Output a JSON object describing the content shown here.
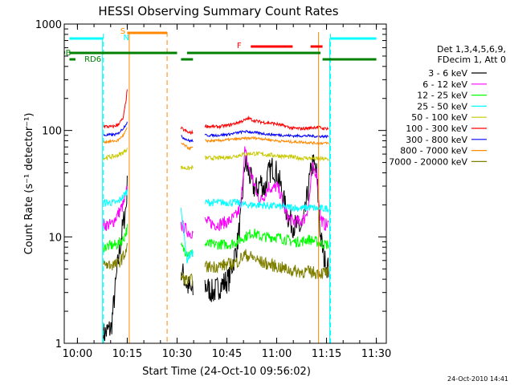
{
  "chart_data": {
    "type": "line",
    "title": "HESSI Observing Summary Count Rates",
    "xlabel": "Start Time (24-Oct-10 09:56:02)",
    "ylabel": "Count Rate (s⁻¹ detector⁻¹)",
    "yscale": "log",
    "ylim": [
      1,
      1000
    ],
    "xlim": [
      "09:56:02",
      "11:33"
    ],
    "x_ticks": [
      "10:00",
      "10:15",
      "10:30",
      "10:45",
      "11:00",
      "11:15",
      "11:30"
    ],
    "y_ticks": [
      "1",
      "10",
      "100",
      "1000"
    ],
    "footer_date": "24-Oct-2010 14:41",
    "legend": {
      "header": [
        "Det 1,3,4,5,6,9,",
        "FDecim 1, Att 0"
      ],
      "entries": [
        {
          "label": "3 - 6 keV",
          "color": "#000000"
        },
        {
          "label": "6 - 12 keV",
          "color": "#ff00ff"
        },
        {
          "label": "12 - 25 keV",
          "color": "#00ff00"
        },
        {
          "label": "25 - 50 keV",
          "color": "#00ffff"
        },
        {
          "label": "50 - 100 keV",
          "color": "#c8c800"
        },
        {
          "label": "100 - 300 keV",
          "color": "#ff0000"
        },
        {
          "label": "300 - 800 keV",
          "color": "#0000ff"
        },
        {
          "label": "800 - 7000 keV",
          "color": "#ff8800"
        },
        {
          "label": "7000 - 20000 keV",
          "color": "#808000"
        }
      ]
    },
    "segments": [
      {
        "start": 10.13,
        "end": 10.25
      },
      {
        "start": 10.52,
        "end": 10.58
      },
      {
        "start": 10.64,
        "end": 11.26
      }
    ],
    "series": [
      {
        "color": "#000000",
        "points": [
          [
            10.13,
            1.2
          ],
          [
            10.17,
            1.4
          ],
          [
            10.2,
            5
          ],
          [
            10.22,
            10
          ],
          [
            10.245,
            20
          ],
          [
            10.25,
            30
          ],
          [
            10.52,
            5
          ],
          [
            10.55,
            3.5
          ],
          [
            10.58,
            3
          ],
          [
            10.64,
            3.5
          ],
          [
            10.68,
            3
          ],
          [
            10.72,
            3.5
          ],
          [
            10.76,
            4
          ],
          [
            10.8,
            8
          ],
          [
            10.82,
            15
          ],
          [
            10.84,
            50
          ],
          [
            10.86,
            40
          ],
          [
            10.88,
            30
          ],
          [
            10.9,
            28
          ],
          [
            10.92,
            33
          ],
          [
            10.94,
            28
          ],
          [
            10.96,
            40
          ],
          [
            10.98,
            45
          ],
          [
            11.0,
            40
          ],
          [
            11.02,
            30
          ],
          [
            11.04,
            20
          ],
          [
            11.06,
            15
          ],
          [
            11.08,
            13
          ],
          [
            11.12,
            12
          ],
          [
            11.14,
            15
          ],
          [
            11.16,
            30
          ],
          [
            11.18,
            50
          ],
          [
            11.2,
            40
          ],
          [
            11.22,
            10
          ],
          [
            11.24,
            6
          ],
          [
            11.26,
            5
          ]
        ]
      },
      {
        "color": "#ff00ff",
        "points": [
          [
            10.13,
            13
          ],
          [
            10.17,
            13
          ],
          [
            10.2,
            16
          ],
          [
            10.23,
            20
          ],
          [
            10.245,
            25
          ],
          [
            10.25,
            30
          ],
          [
            10.52,
            13
          ],
          [
            10.56,
            11
          ],
          [
            10.58,
            11
          ],
          [
            10.64,
            14
          ],
          [
            10.7,
            13
          ],
          [
            10.76,
            14
          ],
          [
            10.8,
            16
          ],
          [
            10.82,
            20
          ],
          [
            10.84,
            65
          ],
          [
            10.86,
            45
          ],
          [
            10.88,
            35
          ],
          [
            10.9,
            25
          ],
          [
            10.92,
            22
          ],
          [
            10.94,
            25
          ],
          [
            10.96,
            30
          ],
          [
            10.98,
            28
          ],
          [
            11.0,
            30
          ],
          [
            11.02,
            25
          ],
          [
            11.04,
            18
          ],
          [
            11.06,
            15
          ],
          [
            11.08,
            14
          ],
          [
            11.12,
            14
          ],
          [
            11.14,
            15
          ],
          [
            11.16,
            20
          ],
          [
            11.18,
            45
          ],
          [
            11.2,
            40
          ],
          [
            11.22,
            15
          ],
          [
            11.24,
            13
          ],
          [
            11.26,
            13
          ]
        ]
      },
      {
        "color": "#00ff00",
        "points": [
          [
            10.13,
            8
          ],
          [
            10.2,
            8.5
          ],
          [
            10.23,
            9.5
          ],
          [
            10.25,
            12
          ],
          [
            10.52,
            8
          ],
          [
            10.56,
            7
          ],
          [
            10.58,
            7
          ],
          [
            10.64,
            8.5
          ],
          [
            10.7,
            8.5
          ],
          [
            10.76,
            8.5
          ],
          [
            10.8,
            9
          ],
          [
            10.84,
            10
          ],
          [
            10.88,
            11
          ],
          [
            10.92,
            10
          ],
          [
            10.96,
            10
          ],
          [
            11.0,
            10
          ],
          [
            11.04,
            9.5
          ],
          [
            11.08,
            9
          ],
          [
            11.12,
            9
          ],
          [
            11.16,
            9.5
          ],
          [
            11.2,
            9
          ],
          [
            11.24,
            8.5
          ],
          [
            11.26,
            8.5
          ]
        ]
      },
      {
        "color": "#00ffff",
        "points": [
          [
            10.13,
            21
          ],
          [
            10.2,
            21
          ],
          [
            10.23,
            24
          ],
          [
            10.25,
            27
          ],
          [
            10.52,
            19
          ],
          [
            10.55,
            6
          ],
          [
            10.57,
            7
          ],
          [
            10.58,
            7
          ],
          [
            10.64,
            21
          ],
          [
            10.7,
            21
          ],
          [
            10.76,
            21
          ],
          [
            10.8,
            21
          ],
          [
            10.84,
            20
          ],
          [
            10.88,
            20
          ],
          [
            10.92,
            20
          ],
          [
            10.96,
            19.5
          ],
          [
            11.0,
            19.5
          ],
          [
            11.04,
            19
          ],
          [
            11.08,
            19
          ],
          [
            11.12,
            18.5
          ],
          [
            11.16,
            19
          ],
          [
            11.2,
            18.5
          ],
          [
            11.24,
            18.5
          ],
          [
            11.26,
            18.5
          ]
        ]
      },
      {
        "color": "#c8c800",
        "points": [
          [
            10.13,
            55
          ],
          [
            10.2,
            58
          ],
          [
            10.23,
            62
          ],
          [
            10.25,
            68
          ],
          [
            10.52,
            45
          ],
          [
            10.56,
            44
          ],
          [
            10.58,
            45
          ],
          [
            10.64,
            55
          ],
          [
            10.7,
            55
          ],
          [
            10.76,
            56
          ],
          [
            10.8,
            58
          ],
          [
            10.84,
            60
          ],
          [
            10.88,
            61
          ],
          [
            10.92,
            60
          ],
          [
            10.96,
            59
          ],
          [
            11.0,
            58
          ],
          [
            11.04,
            57
          ],
          [
            11.08,
            56
          ],
          [
            11.12,
            55
          ],
          [
            11.16,
            55
          ],
          [
            11.2,
            54
          ],
          [
            11.24,
            54
          ],
          [
            11.26,
            53
          ]
        ]
      },
      {
        "color": "#ff0000",
        "points": [
          [
            10.13,
            110
          ],
          [
            10.17,
            108
          ],
          [
            10.2,
            112
          ],
          [
            10.23,
            130
          ],
          [
            10.245,
            200
          ],
          [
            10.25,
            240
          ],
          [
            10.52,
            105
          ],
          [
            10.56,
            95
          ],
          [
            10.58,
            96
          ],
          [
            10.64,
            110
          ],
          [
            10.7,
            108
          ],
          [
            10.76,
            112
          ],
          [
            10.8,
            118
          ],
          [
            10.84,
            125
          ],
          [
            10.86,
            130
          ],
          [
            10.88,
            125
          ],
          [
            10.92,
            120
          ],
          [
            10.96,
            118
          ],
          [
            11.0,
            115
          ],
          [
            11.04,
            110
          ],
          [
            11.08,
            105
          ],
          [
            11.12,
            104
          ],
          [
            11.16,
            105
          ],
          [
            11.2,
            108
          ],
          [
            11.24,
            104
          ],
          [
            11.26,
            105
          ]
        ]
      },
      {
        "color": "#0000ff",
        "points": [
          [
            10.13,
            90
          ],
          [
            10.2,
            92
          ],
          [
            10.23,
            105
          ],
          [
            10.25,
            120
          ],
          [
            10.52,
            88
          ],
          [
            10.56,
            80
          ],
          [
            10.58,
            80
          ],
          [
            10.64,
            90
          ],
          [
            10.7,
            90
          ],
          [
            10.76,
            92
          ],
          [
            10.8,
            95
          ],
          [
            10.84,
            98
          ],
          [
            10.88,
            96
          ],
          [
            10.92,
            94
          ],
          [
            10.96,
            92
          ],
          [
            11.0,
            91
          ],
          [
            11.04,
            90
          ],
          [
            11.08,
            89
          ],
          [
            11.12,
            89
          ],
          [
            11.16,
            89
          ],
          [
            11.2,
            88
          ],
          [
            11.24,
            88
          ],
          [
            11.26,
            88
          ]
        ]
      },
      {
        "color": "#ff8800",
        "points": [
          [
            10.13,
            78
          ],
          [
            10.2,
            80
          ],
          [
            10.23,
            90
          ],
          [
            10.25,
            105
          ],
          [
            10.52,
            76
          ],
          [
            10.56,
            68
          ],
          [
            10.58,
            69
          ],
          [
            10.64,
            80
          ],
          [
            10.7,
            80
          ],
          [
            10.76,
            82
          ],
          [
            10.8,
            83
          ],
          [
            10.84,
            84
          ],
          [
            10.88,
            85
          ],
          [
            10.92,
            84
          ],
          [
            10.96,
            82
          ],
          [
            11.0,
            80
          ],
          [
            11.04,
            79
          ],
          [
            11.08,
            78
          ],
          [
            11.12,
            78
          ],
          [
            11.16,
            77
          ],
          [
            11.2,
            76
          ],
          [
            11.24,
            76
          ],
          [
            11.26,
            76
          ]
        ]
      },
      {
        "color": "#808000",
        "points": [
          [
            10.13,
            5.5
          ],
          [
            10.2,
            5.5
          ],
          [
            10.23,
            6.5
          ],
          [
            10.25,
            8
          ],
          [
            10.52,
            4.2
          ],
          [
            10.56,
            3.8
          ],
          [
            10.58,
            4
          ],
          [
            10.64,
            5.2
          ],
          [
            10.7,
            5.3
          ],
          [
            10.76,
            5.5
          ],
          [
            10.8,
            5.8
          ],
          [
            10.84,
            6.8
          ],
          [
            10.88,
            6.4
          ],
          [
            10.92,
            5.8
          ],
          [
            10.96,
            5.5
          ],
          [
            11.0,
            5.3
          ],
          [
            11.04,
            5.0
          ],
          [
            11.08,
            4.8
          ],
          [
            11.12,
            4.7
          ],
          [
            11.16,
            4.7
          ],
          [
            11.2,
            4.6
          ],
          [
            11.24,
            4.6
          ],
          [
            11.26,
            4.6
          ]
        ]
      }
    ],
    "flags": {
      "labels": {
        "S": "S",
        "N": "N",
        "F": "F",
        "RDB": "RDB",
        "RD6": "RD6"
      },
      "saa_bars": [
        [
          9.96,
          10.13
        ],
        [
          11.27,
          11.5
        ]
      ],
      "night_bar": [
        10.25,
        10.45
      ],
      "flare_bars": [
        [
          10.87,
          11.08
        ],
        [
          11.17,
          11.23
        ]
      ],
      "rdb_bars": [
        [
          9.96,
          10.5
        ],
        [
          10.55,
          11.22
        ]
      ],
      "rd6_bars": [
        [
          9.96,
          9.99
        ],
        [
          10.52,
          10.58
        ],
        [
          11.23,
          11.5
        ]
      ],
      "cyan_dashed_x": [
        10.13,
        11.27
      ],
      "orange_solid_x": [
        10.26,
        11.21
      ],
      "orange_dashed_x": 10.45
    }
  }
}
